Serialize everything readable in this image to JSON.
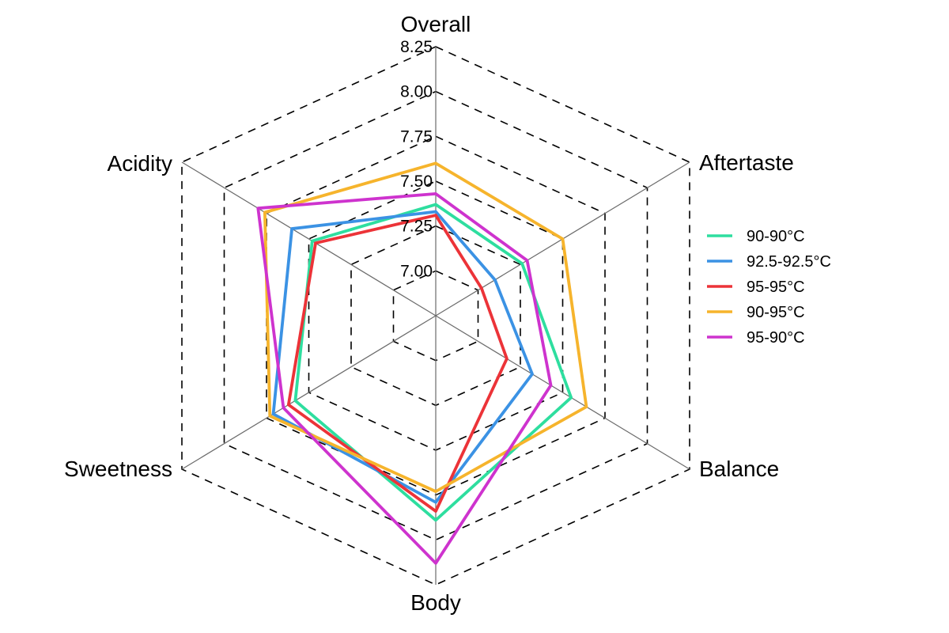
{
  "figure": {
    "background": "#ffffff",
    "grid_color": "#000000",
    "spoke_color": "#6b6b6b"
  },
  "chart_data": {
    "type": "radar",
    "title": "",
    "axes": [
      "Overall",
      "Aftertaste",
      "Balance",
      "Body",
      "Sweetness",
      "Acidity"
    ],
    "axis_range": [
      6.75,
      8.25
    ],
    "tick_values": [
      7.0,
      7.25,
      7.5,
      7.75,
      8.0,
      8.25
    ],
    "tick_labels": [
      "7.00",
      "7.25",
      "7.50",
      "7.75",
      "8.00",
      "8.25"
    ],
    "grid": "dashed-hexagons",
    "legend_position": "right",
    "series": [
      {
        "name": "90-90°C",
        "color": "#2EDE9F",
        "values": [
          7.37,
          7.26,
          7.55,
          7.89,
          7.58,
          7.48
        ]
      },
      {
        "name": "92.5-92.5°C",
        "color": "#3B92E4",
        "values": [
          7.33,
          7.1,
          7.32,
          7.79,
          7.71,
          7.6
        ]
      },
      {
        "name": "95-95°C",
        "color": "#EC3338",
        "values": [
          7.31,
          7.02,
          7.17,
          7.84,
          7.62,
          7.46
        ]
      },
      {
        "name": "90-95°C",
        "color": "#F6B42C",
        "values": [
          7.6,
          7.5,
          7.64,
          7.73,
          7.73,
          7.76
        ]
      },
      {
        "name": "95-90°C",
        "color": "#CE33CE",
        "values": [
          7.43,
          7.29,
          7.43,
          8.13,
          7.65,
          7.8
        ]
      }
    ]
  }
}
